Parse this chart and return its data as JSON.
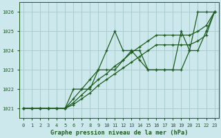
{
  "title": "Graphe pression niveau de la mer (hPa)",
  "background_color": "#cce8ec",
  "grid_color": "#aacccc",
  "line_color": "#1a5c1a",
  "xlim": [
    -0.5,
    23.5
  ],
  "ylim": [
    1020.5,
    1026.5
  ],
  "yticks": [
    1021,
    1022,
    1023,
    1024,
    1025,
    1026
  ],
  "xtick_labels": [
    "0",
    "1",
    "2",
    "3",
    "4",
    "5",
    "6",
    "7",
    "8",
    "9",
    "10",
    "11",
    "12",
    "13",
    "14",
    "15",
    "16",
    "17",
    "18",
    "19",
    "20",
    "21",
    "22",
    "23"
  ],
  "xticks": [
    0,
    1,
    2,
    3,
    4,
    5,
    6,
    7,
    8,
    9,
    10,
    11,
    12,
    13,
    14,
    15,
    16,
    17,
    18,
    19,
    20,
    21,
    22,
    23
  ],
  "lines": [
    [
      1021,
      1021,
      1021,
      1021,
      1021,
      1021,
      1022,
      1022,
      1022,
      1023,
      1024,
      1025,
      1024,
      1024,
      1024,
      1023,
      1023,
      1023,
      1023,
      1025,
      1024,
      1026,
      1026,
      1026
    ],
    [
      1021,
      1021,
      1021,
      1021,
      1021,
      1021,
      1021.5,
      1022,
      1022.5,
      1023,
      1023,
      1023,
      1023.5,
      1024,
      1023.5,
      1023,
      1023,
      1023,
      1023,
      1023,
      1024,
      1024,
      1025,
      1026
    ],
    [
      1021,
      1021,
      1021,
      1021,
      1021,
      1021,
      1021.3,
      1021.7,
      1022.1,
      1022.5,
      1022.8,
      1023.2,
      1023.5,
      1023.9,
      1024.2,
      1024.5,
      1024.8,
      1024.8,
      1024.8,
      1024.8,
      1024.8,
      1025.0,
      1025.3,
      1026
    ],
    [
      1021,
      1021,
      1021,
      1021,
      1021,
      1021,
      1021.2,
      1021.5,
      1021.8,
      1022.2,
      1022.5,
      1022.8,
      1023.1,
      1023.4,
      1023.7,
      1024.0,
      1024.3,
      1024.3,
      1024.3,
      1024.3,
      1024.3,
      1024.5,
      1024.8,
      1026
    ]
  ]
}
